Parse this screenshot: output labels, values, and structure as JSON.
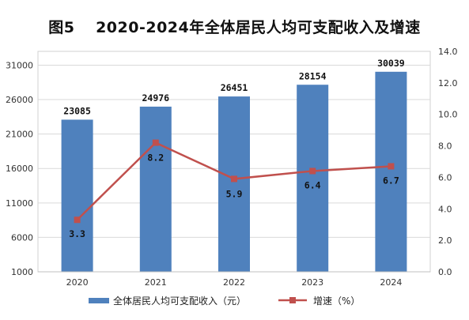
{
  "title": "图5　 2020-2024年全体居民人均可支配收入及增速",
  "colors": {
    "bar": "#4F81BD",
    "line": "#C0504D",
    "grid": "#D9D9D9"
  },
  "chart_data": {
    "type": "bar",
    "title": "图5　 2020-2024年全体居民人均可支配收入及增速",
    "categories": [
      "2020",
      "2021",
      "2022",
      "2023",
      "2024"
    ],
    "series": [
      {
        "name": "全体居民人均可支配收入（元）",
        "type": "bar",
        "axis": "left",
        "values": [
          23085,
          24976,
          26451,
          28154,
          30039
        ],
        "labels": [
          "23085",
          "24976",
          "26451",
          "28154",
          "30039"
        ]
      },
      {
        "name": "增速（%）",
        "type": "line",
        "axis": "right",
        "values": [
          3.3,
          8.2,
          5.9,
          6.4,
          6.7
        ],
        "labels": [
          "3.3",
          "8.2",
          "5.9",
          "6.4",
          "6.7"
        ]
      }
    ],
    "y_left": {
      "min": 1000,
      "max": 33000,
      "ticks": [
        1000,
        6000,
        11000,
        16000,
        21000,
        26000,
        31000
      ],
      "tick_labels": [
        "1000",
        "6000",
        "11000",
        "16000",
        "21000",
        "26000",
        "31000"
      ]
    },
    "y_right": {
      "min": 0,
      "max": 14,
      "ticks": [
        0,
        2,
        4,
        6,
        8,
        10,
        12,
        14
      ],
      "tick_labels": [
        "0.0",
        "2.0",
        "4.0",
        "6.0",
        "8.0",
        "10.0",
        "12.0",
        "14.0"
      ]
    },
    "grid": true,
    "legend_position": "bottom"
  }
}
